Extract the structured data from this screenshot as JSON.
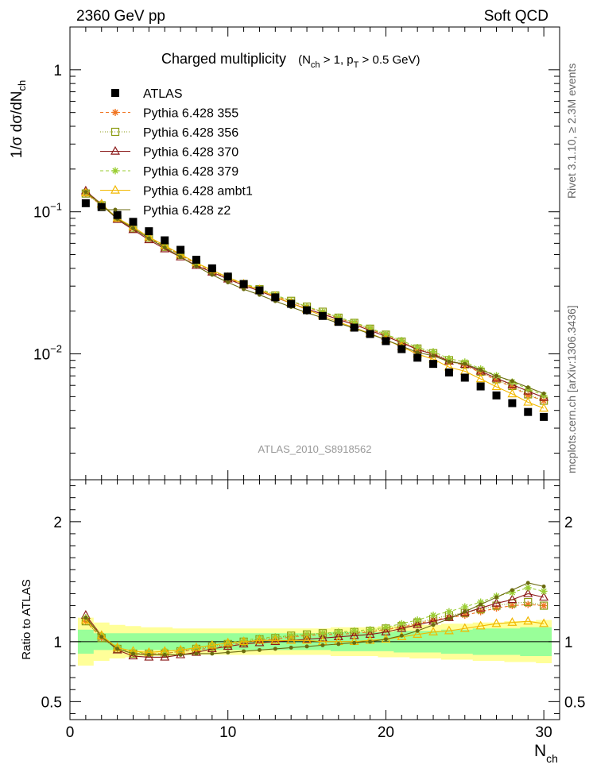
{
  "header": {
    "left": "2360 GeV pp",
    "right": "Soft QCD"
  },
  "side_labels": {
    "rivet": "Rivet 3.1.10, ≥ 2.3M events",
    "mcplots": "mcplots.cern.ch [arXiv:1306.3436]"
  },
  "watermark": "ATLAS_2010_S8918562",
  "chart_data": {
    "type": "line",
    "title_main": "Charged multiplicity",
    "title_cond_open": "(N",
    "title_cond_sub1": "ch",
    "title_cond_mid": " > 1, p",
    "title_cond_sub2": "T",
    "title_cond_close": " > 0.5 GeV)",
    "ylabel_main": "1/σ dσ/dN",
    "ylabel_sub": "ch",
    "ylabel_ratio": "Ratio to ATLAS",
    "xlabel_main": "N",
    "xlabel_sub": "ch",
    "xlim": [
      0,
      31
    ],
    "ylim_main": [
      0.0013,
      2.0
    ],
    "yscale_main": "log",
    "ylim_ratio": [
      0.35,
      2.35
    ],
    "x_ticks": [
      "0",
      "10",
      "20",
      "30"
    ],
    "y_ticks_main": [
      {
        "base": "1",
        "exp": ""
      },
      {
        "base": "10",
        "exp": "−1"
      },
      {
        "base": "10",
        "exp": "−2"
      }
    ],
    "y_ticks_ratio": [
      "0.5",
      "1",
      "2"
    ],
    "data": {
      "name": "ATLAS",
      "color": "#000000",
      "x": [
        1,
        2,
        3,
        4,
        5,
        6,
        7,
        8,
        9,
        10,
        11,
        12,
        13,
        14,
        15,
        16,
        17,
        18,
        19,
        20,
        21,
        22,
        23,
        24,
        25,
        26,
        27,
        28,
        29,
        30
      ],
      "y": [
        0.115,
        0.108,
        0.095,
        0.085,
        0.073,
        0.063,
        0.054,
        0.046,
        0.04,
        0.035,
        0.031,
        0.028,
        0.025,
        0.0225,
        0.0203,
        0.0185,
        0.0168,
        0.0153,
        0.0138,
        0.0123,
        0.0108,
        0.0094,
        0.0085,
        0.0074,
        0.0068,
        0.0059,
        0.0051,
        0.0045,
        0.0039,
        0.0036
      ],
      "stat_band": [
        0.1,
        0.07,
        0.07,
        0.07,
        0.07,
        0.07,
        0.07,
        0.07,
        0.07,
        0.07,
        0.07,
        0.07,
        0.07,
        0.07,
        0.07,
        0.07,
        0.08,
        0.08,
        0.08,
        0.08,
        0.09,
        0.09,
        0.09,
        0.1,
        0.1,
        0.11,
        0.11,
        0.11,
        0.12,
        0.12
      ],
      "tot_band": [
        0.2,
        0.16,
        0.14,
        0.13,
        0.12,
        0.12,
        0.11,
        0.11,
        0.11,
        0.11,
        0.11,
        0.11,
        0.11,
        0.11,
        0.11,
        0.11,
        0.12,
        0.12,
        0.12,
        0.13,
        0.13,
        0.14,
        0.14,
        0.15,
        0.15,
        0.16,
        0.16,
        0.17,
        0.17,
        0.18
      ]
    },
    "series": [
      {
        "name": "Pythia 6.428 355",
        "color": "#f07522",
        "dash": "4,3",
        "marker": "star",
        "ratio": [
          1.17,
          1.03,
          0.94,
          0.9,
          0.9,
          0.9,
          0.92,
          0.93,
          0.95,
          0.97,
          0.99,
          1.01,
          1.02,
          1.04,
          1.05,
          1.06,
          1.06,
          1.07,
          1.08,
          1.1,
          1.12,
          1.15,
          1.18,
          1.2,
          1.22,
          1.25,
          1.28,
          1.3,
          1.31,
          1.3
        ]
      },
      {
        "name": "Pythia 6.428 356",
        "color": "#8a9a10",
        "dash": "1,2",
        "marker": "square",
        "ratio": [
          1.17,
          1.03,
          0.94,
          0.9,
          0.9,
          0.9,
          0.92,
          0.94,
          0.96,
          0.98,
          1.0,
          1.02,
          1.03,
          1.05,
          1.06,
          1.07,
          1.07,
          1.08,
          1.09,
          1.11,
          1.13,
          1.16,
          1.19,
          1.22,
          1.24,
          1.27,
          1.3,
          1.32,
          1.33,
          1.3
        ]
      },
      {
        "name": "Pythia 6.428 370",
        "color": "#8b1a1a",
        "dash": "",
        "marker": "triangle",
        "ratio": [
          1.22,
          1.05,
          0.93,
          0.88,
          0.87,
          0.87,
          0.89,
          0.91,
          0.94,
          0.96,
          0.98,
          0.99,
          1.0,
          1.01,
          1.02,
          1.03,
          1.04,
          1.05,
          1.06,
          1.08,
          1.11,
          1.14,
          1.17,
          1.2,
          1.24,
          1.28,
          1.32,
          1.35,
          1.4,
          1.37
        ]
      },
      {
        "name": "Pythia 6.428 379",
        "color": "#9acd32",
        "dash": "4,3",
        "marker": "star",
        "ratio": [
          1.2,
          1.05,
          0.95,
          0.91,
          0.91,
          0.92,
          0.93,
          0.95,
          0.97,
          0.99,
          1.01,
          1.03,
          1.04,
          1.05,
          1.06,
          1.07,
          1.08,
          1.09,
          1.1,
          1.12,
          1.15,
          1.18,
          1.22,
          1.25,
          1.29,
          1.33,
          1.38,
          1.41,
          1.45,
          1.42
        ]
      },
      {
        "name": "Pythia 6.428 ambt1",
        "color": "#f2b800",
        "dash": "",
        "marker": "triangle",
        "ratio": [
          1.18,
          1.05,
          0.95,
          0.92,
          0.91,
          0.92,
          0.93,
          0.95,
          0.97,
          0.99,
          1.0,
          1.01,
          1.01,
          1.01,
          1.01,
          1.0,
          1.0,
          1.0,
          1.01,
          1.02,
          1.04,
          1.06,
          1.08,
          1.09,
          1.11,
          1.13,
          1.15,
          1.16,
          1.17,
          1.15
        ]
      },
      {
        "name": "Pythia 6.428 z2",
        "color": "#6b6b10",
        "dash": "",
        "marker": "dot",
        "ratio": [
          1.2,
          1.04,
          0.94,
          0.9,
          0.89,
          0.89,
          0.89,
          0.9,
          0.9,
          0.91,
          0.92,
          0.93,
          0.94,
          0.95,
          0.96,
          0.97,
          0.98,
          0.99,
          1.0,
          1.02,
          1.05,
          1.09,
          1.14,
          1.19,
          1.25,
          1.31,
          1.37,
          1.43,
          1.49,
          1.46
        ]
      }
    ]
  }
}
